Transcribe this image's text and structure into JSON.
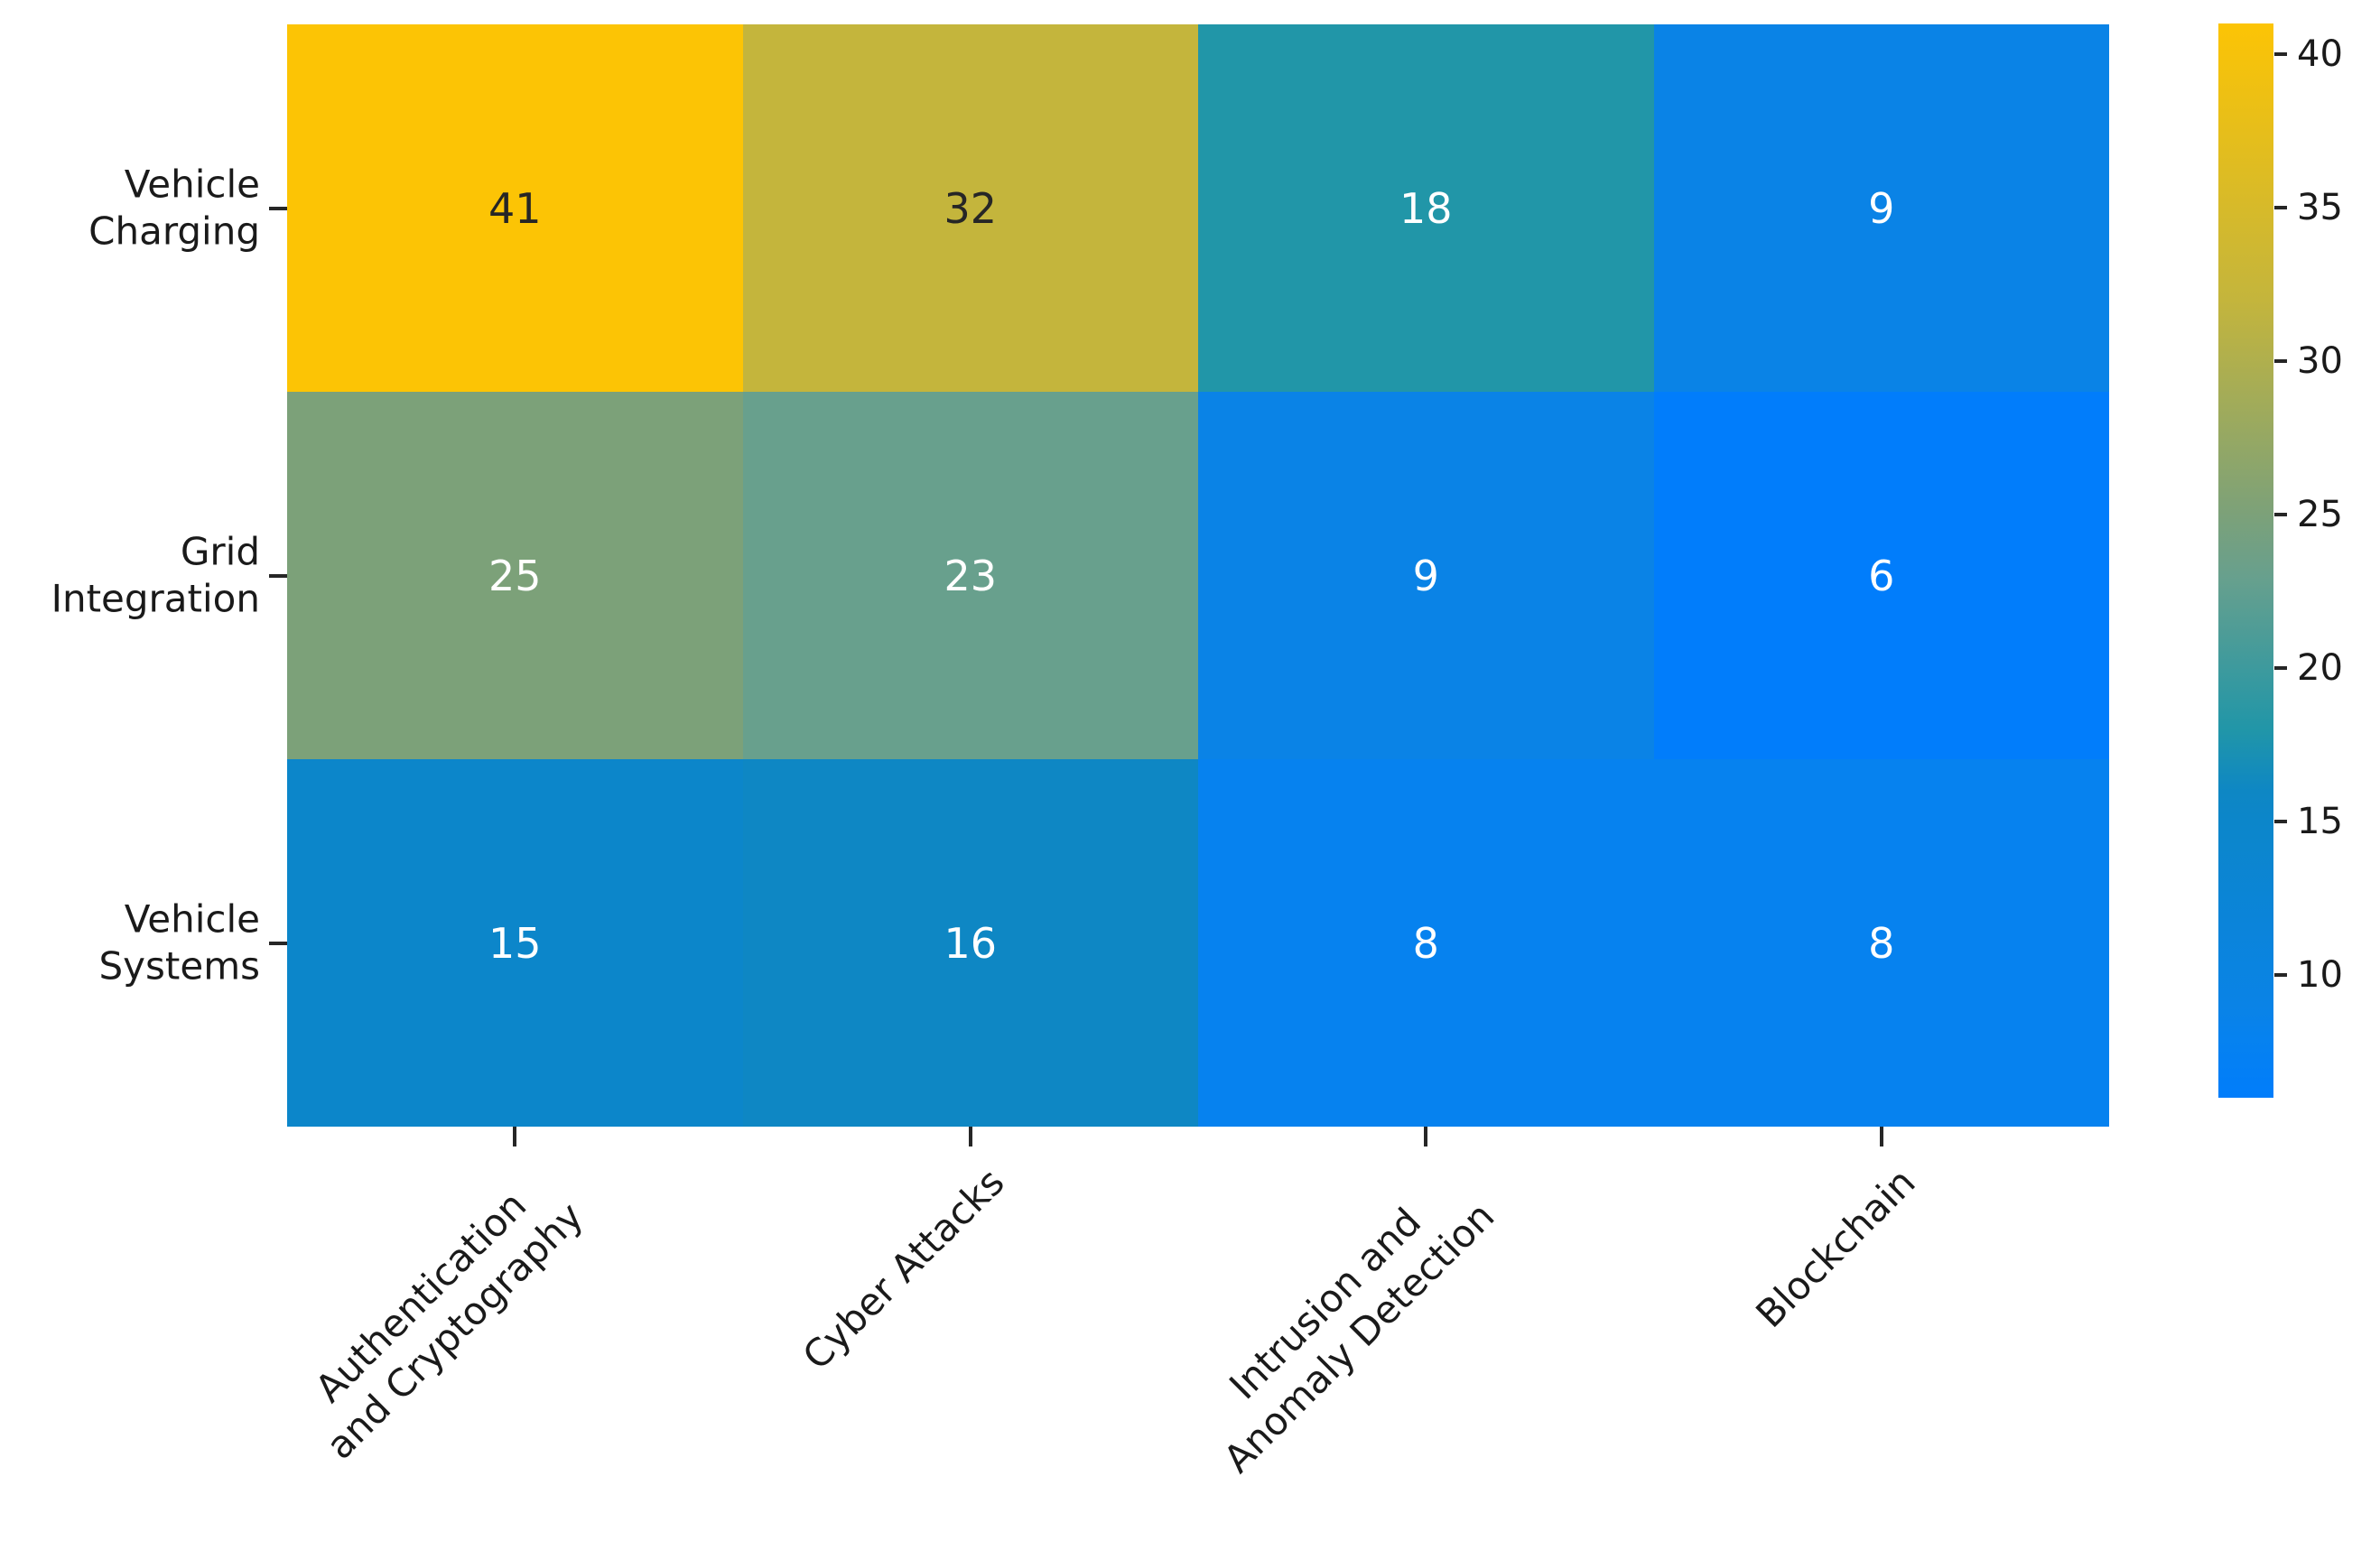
{
  "chart_data": {
    "type": "heatmap",
    "rows": [
      {
        "label_lines": [
          "Vehicle",
          "Charging"
        ]
      },
      {
        "label_lines": [
          "Grid",
          "Integration"
        ]
      },
      {
        "label_lines": [
          "Vehicle",
          "Systems"
        ]
      }
    ],
    "columns": [
      {
        "label_lines": [
          "Authentication",
          "and Cryptography"
        ]
      },
      {
        "label_lines": [
          "Cyber Attacks"
        ]
      },
      {
        "label_lines": [
          "Intrusion and",
          "Anomaly Detection"
        ]
      },
      {
        "label_lines": [
          "Blockchain"
        ]
      }
    ],
    "values": [
      [
        41,
        32,
        18,
        9
      ],
      [
        25,
        23,
        9,
        6
      ],
      [
        15,
        16,
        8,
        8
      ]
    ],
    "vmin": 6,
    "vmax": 41,
    "colorbar_ticks": [
      40,
      35,
      30,
      25,
      20,
      15,
      10
    ],
    "colormap_stops": [
      {
        "value": 6,
        "color": "#017dfb"
      },
      {
        "value": 8,
        "color": "#0682ef"
      },
      {
        "value": 9,
        "color": "#0a83e6"
      },
      {
        "value": 15,
        "color": "#0c86ca"
      },
      {
        "value": 16,
        "color": "#0e87c4"
      },
      {
        "value": 18,
        "color": "#2196a8"
      },
      {
        "value": 23,
        "color": "#68a08d"
      },
      {
        "value": 25,
        "color": "#7ca179"
      },
      {
        "value": 32,
        "color": "#c4b53c"
      },
      {
        "value": 41,
        "color": "#fcc405"
      }
    ],
    "annotation_dark_color": "#262626",
    "annotation_light_color": "#ffffff",
    "legend_position": "right-colorbar",
    "grid": "off"
  },
  "layout_text": {}
}
